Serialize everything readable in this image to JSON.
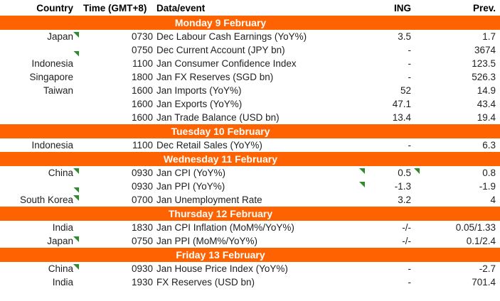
{
  "colors": {
    "accent_orange": "#FF6200",
    "flag_green": "#2E8B2E",
    "band_text": "#FFFFFF",
    "body_text": "#1F1F1F"
  },
  "header": {
    "country": "Country",
    "time": "Time (GMT+8)",
    "event": "Data/event",
    "ing": "ING",
    "prev": "Prev."
  },
  "flag_icon_meaning": "note-flag-icon",
  "sections": [
    {
      "title": "Monday 9 February",
      "rows": [
        {
          "country": "Japan",
          "country_flag": true,
          "time": "0730",
          "event": "Dec Labour Cash Earnings (YoY%)",
          "event_flag": false,
          "ing": "3.5",
          "ing_flag": false,
          "prev": "1.7"
        },
        {
          "country": "",
          "country_flag": true,
          "time": "0750",
          "event": "Dec Current Account (JPY bn)",
          "event_flag": false,
          "ing": "-",
          "ing_flag": false,
          "prev": "3674"
        },
        {
          "country": "Indonesia",
          "country_flag": false,
          "time": "1100",
          "event": "Jan Consumer Confidence Index",
          "event_flag": false,
          "ing": "-",
          "ing_flag": false,
          "prev": "123.5"
        },
        {
          "country": "Singapore",
          "country_flag": false,
          "time": "1800",
          "event": "Jan FX Reserves (SGD bn)",
          "event_flag": false,
          "ing": "-",
          "ing_flag": false,
          "prev": "526.3"
        },
        {
          "country": "Taiwan",
          "country_flag": false,
          "time": "1600",
          "event": "Jan Imports (YoY%)",
          "event_flag": false,
          "ing": "52",
          "ing_flag": false,
          "prev": "14.9"
        },
        {
          "country": "",
          "country_flag": false,
          "time": "1600",
          "event": "Jan Exports (YoY%)",
          "event_flag": false,
          "ing": "47.1",
          "ing_flag": false,
          "prev": "43.4"
        },
        {
          "country": "",
          "country_flag": false,
          "time": "1600",
          "event": "Jan Trade Balance (USD bn)",
          "event_flag": false,
          "ing": "13.4",
          "ing_flag": false,
          "prev": "19.4"
        }
      ]
    },
    {
      "title": "Tuesday 10 February",
      "rows": [
        {
          "country": "Indonesia",
          "country_flag": false,
          "time": "1100",
          "event": "Dec Retail Sales (YoY%)",
          "event_flag": false,
          "ing": "-",
          "ing_flag": false,
          "prev": "6.3"
        }
      ]
    },
    {
      "title": "Wednesday 11 February",
      "rows": [
        {
          "country": "China",
          "country_flag": true,
          "time": "0930",
          "event": "Jan CPI (YoY%)",
          "event_flag": true,
          "ing": "0.5",
          "ing_flag": true,
          "prev": "0.8"
        },
        {
          "country": "",
          "country_flag": true,
          "time": "0930",
          "event": "Jan PPI (YoY%)",
          "event_flag": true,
          "ing": "-1.3",
          "ing_flag": false,
          "prev": "-1.9"
        },
        {
          "country": "South Korea",
          "country_flag": true,
          "time": "0700",
          "event": "Jan Unemployment Rate",
          "event_flag": false,
          "ing": "3.2",
          "ing_flag": false,
          "prev": "4"
        }
      ]
    },
    {
      "title": "Thursday 12 February",
      "rows": [
        {
          "country": "India",
          "country_flag": false,
          "time": "1830",
          "event": "Jan CPI Inflation (MoM%/YoY%)",
          "event_flag": false,
          "ing": "-/-",
          "ing_flag": false,
          "prev": "0.05/1.33"
        },
        {
          "country": "Japan",
          "country_flag": true,
          "time": "0750",
          "event": "Jan PPI (MoM%/YoY%)",
          "event_flag": false,
          "ing": "-/-",
          "ing_flag": false,
          "prev": "0.1/2.4"
        }
      ]
    },
    {
      "title": "Friday 13 February",
      "rows": [
        {
          "country": "China",
          "country_flag": true,
          "time": "0930",
          "event": "Jan House Price Index (YoY%)",
          "event_flag": false,
          "ing": "-",
          "ing_flag": false,
          "prev": "-2.7"
        },
        {
          "country": "India",
          "country_flag": false,
          "time": "1930",
          "event": "FX Reserves (USD bn)",
          "event_flag": false,
          "ing": "-",
          "ing_flag": false,
          "prev": "701.4"
        }
      ]
    }
  ]
}
